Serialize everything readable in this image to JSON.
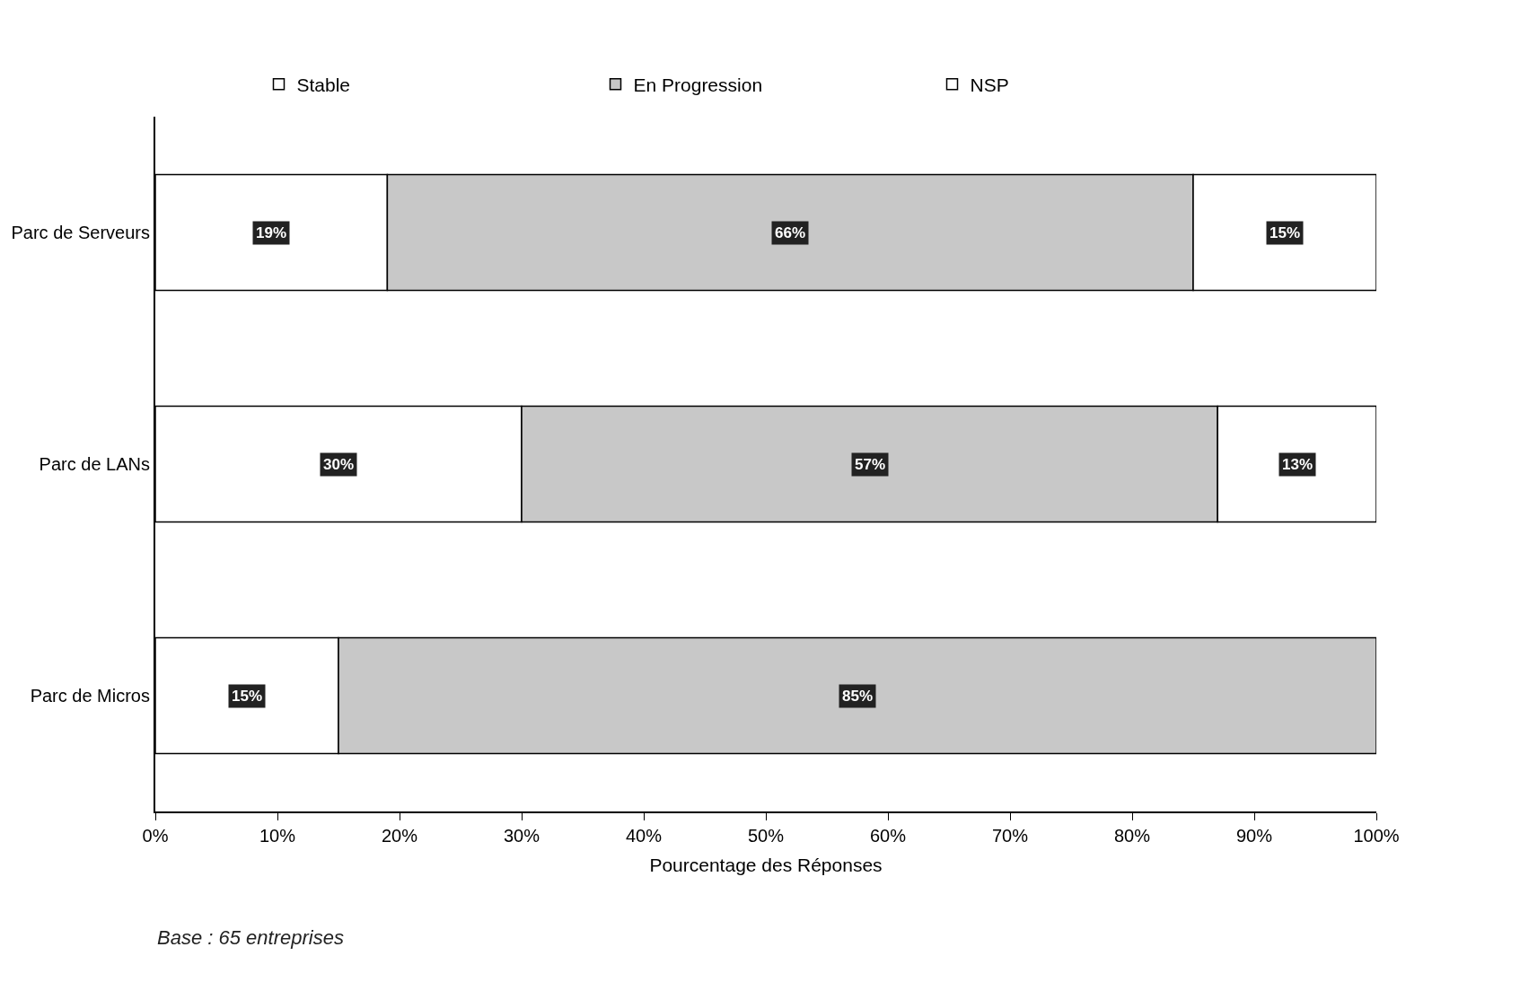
{
  "chart_data": {
    "type": "bar",
    "orientation": "horizontal",
    "stacked": true,
    "categories": [
      "Parc de Serveurs",
      "Parc de LANs",
      "Parc de Micros"
    ],
    "series": [
      {
        "name": "Stable",
        "color": "#ffffff",
        "values": [
          19,
          30,
          15
        ],
        "value_labels": [
          "19%",
          "30%",
          "15%"
        ]
      },
      {
        "name": "En Progression",
        "color": "#c8c8c8",
        "values": [
          66,
          57,
          85
        ],
        "value_labels": [
          "66%",
          "57%",
          "85%"
        ]
      },
      {
        "name": "NSP",
        "color": "#ffffff",
        "values": [
          15,
          13,
          null
        ],
        "value_labels": [
          "15%",
          "13%",
          null
        ]
      }
    ],
    "xlim": [
      0,
      100
    ],
    "xticks": [
      {
        "value": 0,
        "label": "0%"
      },
      {
        "value": 10,
        "label": "10%"
      },
      {
        "value": 20,
        "label": "20%"
      },
      {
        "value": 30,
        "label": "30%"
      },
      {
        "value": 40,
        "label": "40%"
      },
      {
        "value": 50,
        "label": "50%"
      },
      {
        "value": 60,
        "label": "60%"
      },
      {
        "value": 70,
        "label": "70%"
      },
      {
        "value": 80,
        "label": "80%"
      },
      {
        "value": 90,
        "label": "90%"
      },
      {
        "value": 100,
        "label": "100%"
      }
    ],
    "xlabel": "Pourcentage des Réponses",
    "annotations": [
      "Base : 65 entreprises"
    ],
    "legend": "top"
  }
}
